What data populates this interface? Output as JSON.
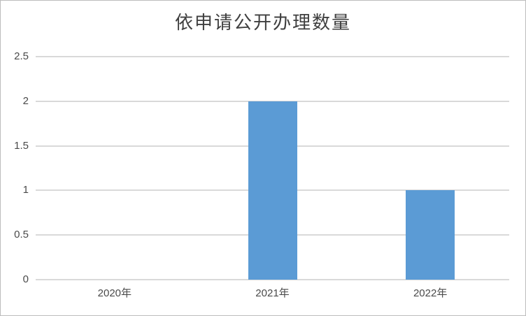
{
  "window": {
    "background_color": "#ffffff",
    "border_color": "#bdbdbd"
  },
  "chart_data": {
    "type": "bar",
    "title": "依申请公开办理数量",
    "categories": [
      "2020年",
      "2021年",
      "2022年"
    ],
    "values": [
      0,
      2,
      1
    ],
    "xlabel": "",
    "ylabel": "",
    "ylim": [
      0,
      2.5
    ],
    "yticks": [
      0,
      0.5,
      1,
      1.5,
      2,
      2.5
    ],
    "ytick_labels": [
      "0",
      "0.5",
      "1",
      "1.5",
      "2",
      "2.5"
    ],
    "grid": "horizontal",
    "legend": "none",
    "bar_color": "#5b9bd5",
    "gridline_color": "#d9d9d9",
    "title_color": "#3f3f3f",
    "tick_label_color": "#4a4a4a"
  }
}
